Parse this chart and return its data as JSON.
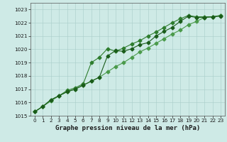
{
  "xlabel": "Graphe pression niveau de la mer (hPa)",
  "ylim": [
    1015,
    1023.5
  ],
  "xlim": [
    -0.5,
    23.5
  ],
  "yticks": [
    1015,
    1016,
    1017,
    1018,
    1019,
    1020,
    1021,
    1022,
    1023
  ],
  "xticks": [
    0,
    1,
    2,
    3,
    4,
    5,
    6,
    7,
    8,
    9,
    10,
    11,
    12,
    13,
    14,
    15,
    16,
    17,
    18,
    19,
    20,
    21,
    22,
    23
  ],
  "bg_color": "#ceeae6",
  "grid_color": "#a8cdc9",
  "line_color_1": "#1a5c1a",
  "line_color_2": "#2e7d2e",
  "line_color_3": "#4a9a4a",
  "series1": [
    1015.3,
    1015.7,
    1016.2,
    1016.5,
    1016.8,
    1017.0,
    1017.3,
    1017.6,
    1017.9,
    1019.5,
    1019.9,
    1019.85,
    1020.05,
    1020.35,
    1020.5,
    1021.0,
    1021.35,
    1021.65,
    1022.1,
    1022.5,
    1022.4,
    1022.4,
    1022.45,
    1022.5
  ],
  "series2": [
    1015.3,
    1015.7,
    1016.2,
    1016.5,
    1016.9,
    1017.1,
    1017.4,
    1019.0,
    1019.4,
    1020.05,
    1019.85,
    1020.1,
    1020.4,
    1020.65,
    1021.0,
    1021.3,
    1021.65,
    1022.0,
    1022.3,
    1022.55,
    1022.45,
    1022.45,
    1022.45,
    1022.55
  ],
  "series3": [
    1015.3,
    1015.7,
    1016.1,
    1016.5,
    1016.8,
    1017.0,
    1017.3,
    1017.6,
    1017.9,
    1018.3,
    1018.7,
    1019.0,
    1019.4,
    1019.8,
    1020.1,
    1020.45,
    1020.8,
    1021.15,
    1021.45,
    1021.85,
    1022.1,
    1022.4,
    1022.45,
    1022.55
  ],
  "marker": "D",
  "markersize": 2.5,
  "linewidth": 0.8,
  "tick_fontsize": 5.2,
  "xlabel_fontsize": 6.5
}
